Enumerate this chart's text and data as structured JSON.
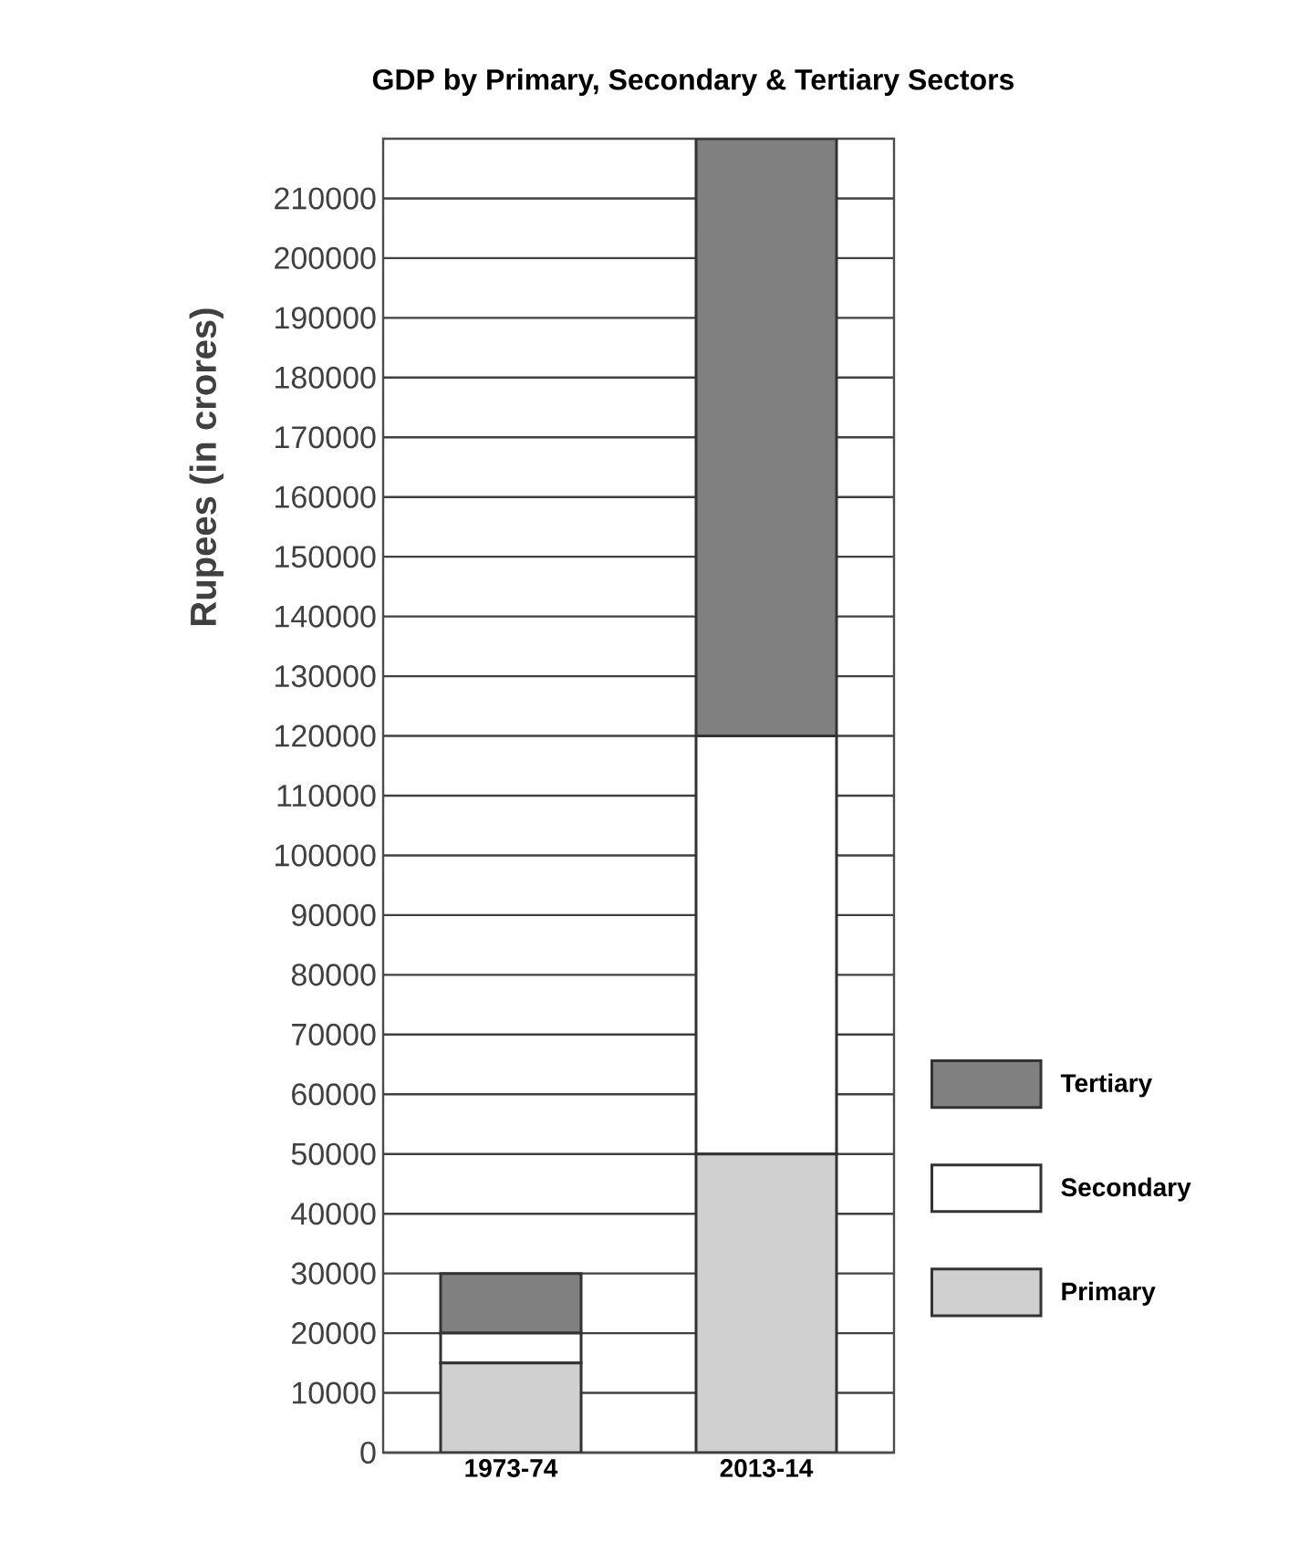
{
  "chart_data": {
    "type": "bar",
    "title": "GDP by Primary, Secondary & Tertiary Sectors",
    "ylabel": "Rupees (in crores)",
    "categories": [
      "1973-74",
      "2013-14"
    ],
    "stacked": true,
    "series": [
      {
        "name": "Primary",
        "color": "#d0d0d0",
        "values": [
          15000,
          50000
        ]
      },
      {
        "name": "Secondary",
        "color": "#ffffff",
        "values": [
          5000,
          70000
        ]
      },
      {
        "name": "Tertiary",
        "color": "#808080",
        "values": [
          10000,
          100000
        ]
      }
    ],
    "ylim": [
      0,
      220000
    ],
    "yticks": [
      0,
      10000,
      20000,
      30000,
      40000,
      50000,
      60000,
      70000,
      80000,
      90000,
      100000,
      110000,
      120000,
      130000,
      140000,
      150000,
      160000,
      170000,
      180000,
      190000,
      200000,
      210000
    ],
    "grid": "y",
    "legend": "right"
  }
}
